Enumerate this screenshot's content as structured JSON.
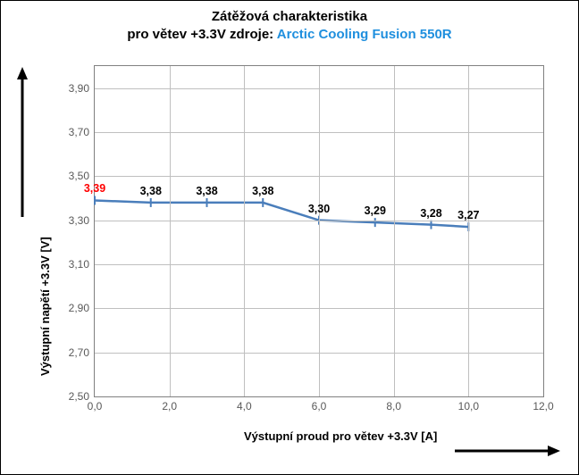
{
  "title": {
    "line1": "Zátěžová charakteristika",
    "line2_part1": "pro větev +3.3V zdroje:  ",
    "line2_part2": "Arctic Cooling  Fusion  550R",
    "fontsize": 15,
    "color_main": "#000000",
    "color_accent": "#1f8fde"
  },
  "chart": {
    "type": "line",
    "background_color": "#ffffff",
    "grid_color": "#bfbfbf",
    "border_color": "#808080",
    "xlim": [
      0.0,
      12.0
    ],
    "ylim": [
      2.5,
      4.0
    ],
    "xtick_step": 2.0,
    "ytick_step": 0.2,
    "xticks": [
      "0,0",
      "2,0",
      "4,0",
      "6,0",
      "8,0",
      "10,0",
      "12,0"
    ],
    "yticks": [
      "2,50",
      "2,70",
      "2,90",
      "3,10",
      "3,30",
      "3,50",
      "3,70",
      "3,90"
    ],
    "xlabel": "Výstupní proud pro větev +3.3V [A]",
    "ylabel": "Výstupní napětí +3.3V   [V]",
    "label_fontsize": 13,
    "tick_fontsize": 12,
    "series": {
      "x": [
        0.0,
        1.5,
        3.0,
        4.5,
        6.0,
        7.5,
        9.0,
        10.0
      ],
      "y": [
        3.39,
        3.38,
        3.38,
        3.38,
        3.3,
        3.29,
        3.28,
        3.27
      ],
      "labels": [
        "3,39",
        "3,38",
        "3,38",
        "3,38",
        "3,30",
        "3,29",
        "3,28",
        "3,27"
      ],
      "line_color": "#4a7ebb",
      "line_width": 2.5,
      "marker": "dash",
      "marker_color": "#4a7ebb",
      "first_label_color": "#ff0000",
      "label_color": "#000000",
      "label_fontsize": 12.5,
      "label_fontweight": "bold"
    }
  },
  "arrows": {
    "color": "#000000",
    "width": 3
  }
}
